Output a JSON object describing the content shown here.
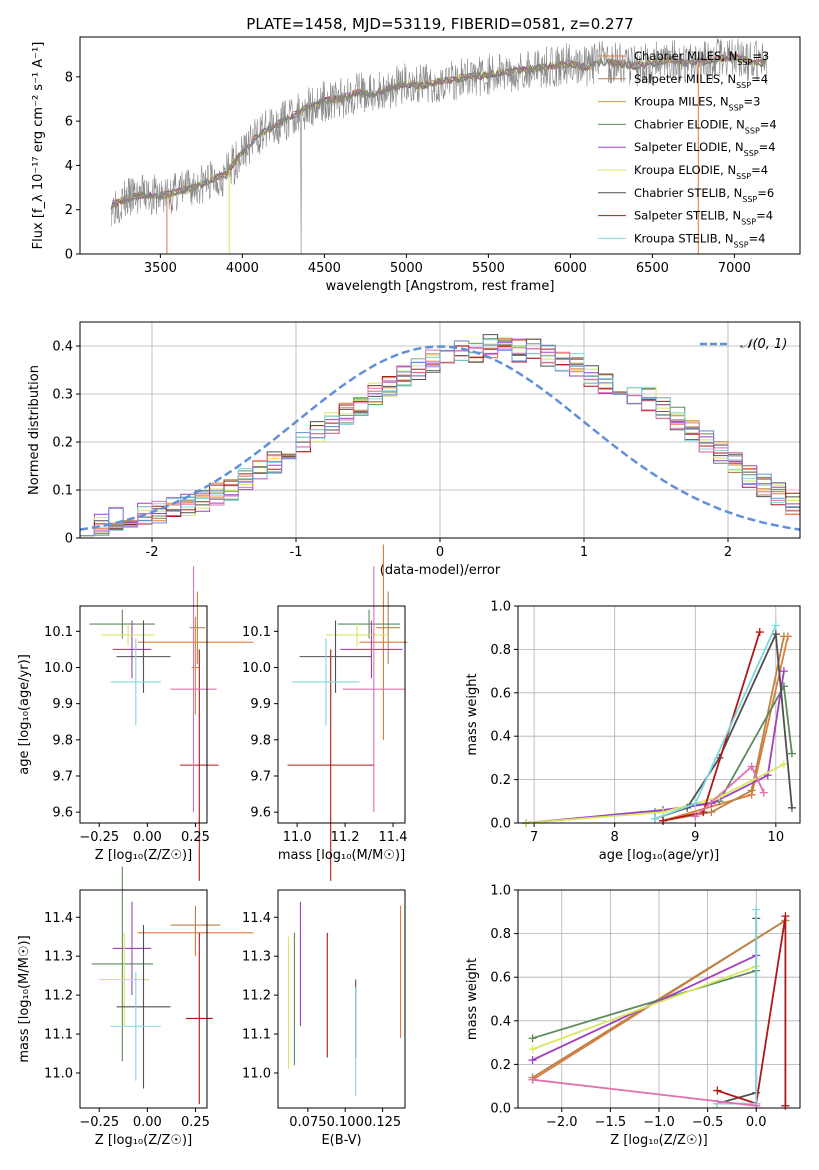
{
  "figure_title": "PLATE=1458, MJD=53119, FIBERID=0581, z=0.277",
  "colors": {
    "chabrier_miles": "#e07b39",
    "salpeter_miles": "#b8844a",
    "kroupa_miles": "#d6903a",
    "chabrier_elodie": "#5c8a5c",
    "salpeter_elodie": "#a040c0",
    "kroupa_elodie": "#d8e860",
    "chabrier_stelib": "#505050",
    "salpeter_stelib": "#b01818",
    "kroupa_stelib": "#80d8e0",
    "observed": "#888888",
    "normal": "#6090d8",
    "pink": "#e070b0",
    "blue": "#7090e0"
  },
  "chart_data": [
    {
      "id": "spectrum",
      "type": "line",
      "title": "PLATE=1458, MJD=53119, FIBERID=0581, z=0.277",
      "xlabel": "wavelength [Angstrom, rest frame]",
      "ylabel": "Flux [f_λ 10⁻¹⁷ erg cm⁻² s⁻¹ A⁻¹]",
      "xlim": [
        3010,
        7400
      ],
      "ylim": [
        0,
        9.8
      ],
      "xticks": [
        3500,
        4000,
        4500,
        5000,
        5500,
        6000,
        6500,
        7000
      ],
      "yticks": [
        0,
        2,
        4,
        6,
        8
      ],
      "continuum": {
        "x": [
          3200,
          3300,
          3400,
          3500,
          3600,
          3700,
          3800,
          3900,
          4000,
          4100,
          4200,
          4300,
          4400,
          4500,
          4600,
          4700,
          4800,
          4900,
          5000,
          5100,
          5200,
          5300,
          5400,
          5500,
          5600,
          5700,
          5800,
          5900,
          6000,
          6100,
          6200,
          6300,
          6400,
          6500,
          6600,
          6700,
          6800,
          6900,
          7000,
          7100,
          7200
        ],
        "y": [
          2.2,
          2.5,
          2.7,
          2.6,
          2.8,
          3.0,
          3.3,
          3.6,
          4.6,
          5.4,
          5.8,
          6.2,
          6.6,
          6.9,
          7.0,
          7.3,
          7.2,
          7.5,
          7.7,
          7.6,
          7.8,
          7.9,
          8.0,
          8.1,
          8.2,
          8.3,
          8.4,
          8.5,
          8.6,
          8.4,
          8.7,
          8.6,
          8.5,
          8.6,
          8.8,
          8.6,
          8.7,
          8.8,
          8.9,
          8.7,
          8.6
        ]
      },
      "legend": [
        {
          "label": "Chabrier MILES, N",
          "sub": "SSP",
          "suffix": "=3",
          "color_key": "chabrier_miles"
        },
        {
          "label": "Salpeter MILES, N",
          "sub": "SSP",
          "suffix": "=4",
          "color_key": "salpeter_miles"
        },
        {
          "label": "Kroupa MILES, N",
          "sub": "SSP",
          "suffix": "=3",
          "color_key": "kroupa_miles"
        },
        {
          "label": "Chabrier ELODIE, N",
          "sub": "SSP",
          "suffix": "=4",
          "color_key": "chabrier_elodie"
        },
        {
          "label": "Salpeter ELODIE, N",
          "sub": "SSP",
          "suffix": "=4",
          "color_key": "salpeter_elodie"
        },
        {
          "label": "Kroupa ELODIE, N",
          "sub": "SSP",
          "suffix": "=4",
          "color_key": "kroupa_elodie"
        },
        {
          "label": "Chabrier STELIB, N",
          "sub": "SSP",
          "suffix": "=6",
          "color_key": "chabrier_stelib"
        },
        {
          "label": "Salpeter STELIB, N",
          "sub": "SSP",
          "suffix": "=4",
          "color_key": "salpeter_stelib"
        },
        {
          "label": "Kroupa STELIB, N",
          "sub": "SSP",
          "suffix": "=4",
          "color_key": "kroupa_stelib"
        }
      ],
      "legend_position": "upper right"
    },
    {
      "id": "residuals",
      "type": "histogram",
      "xlabel": "(data-model)/error",
      "ylabel": "Normed distribution",
      "xlim": [
        -2.5,
        2.5
      ],
      "ylim": [
        0,
        0.45
      ],
      "xticks": [
        -2,
        -1,
        0,
        1,
        2
      ],
      "yticks": [
        0.0,
        0.1,
        0.2,
        0.3,
        0.4
      ],
      "grid": true,
      "bin_edges_start": -2.5,
      "bin_width": 0.1,
      "base_density": [
        0.03,
        0.03,
        0.04,
        0.045,
        0.05,
        0.055,
        0.06,
        0.07,
        0.08,
        0.09,
        0.1,
        0.12,
        0.14,
        0.16,
        0.18,
        0.2,
        0.22,
        0.24,
        0.26,
        0.28,
        0.3,
        0.32,
        0.34,
        0.35,
        0.37,
        0.38,
        0.39,
        0.39,
        0.4,
        0.4,
        0.39,
        0.39,
        0.38,
        0.37,
        0.36,
        0.34,
        0.32,
        0.31,
        0.3,
        0.29,
        0.27,
        0.25,
        0.22,
        0.2,
        0.18,
        0.16,
        0.13,
        0.11,
        0.09,
        0.07
      ],
      "normal_label": "𝒩(0, 1)",
      "legend_position": "upper right"
    },
    {
      "id": "age_vs_z",
      "type": "errorbar",
      "xlabel": "Z [log₁₀(Z/Z☉)]",
      "ylabel": "age  [log₁₀(age/yr)]",
      "xlim": [
        -0.35,
        0.31
      ],
      "ylim": [
        9.57,
        10.17
      ],
      "xticks": [
        -0.25,
        0.0,
        0.25
      ],
      "xtick_labels": [
        "−0.25",
        "0.00",
        "0.25"
      ],
      "yticks": [
        9.6,
        9.7,
        9.8,
        9.9,
        10.0,
        10.1
      ],
      "yticks_labels": [
        "9.6",
        "9.7",
        "9.8",
        "9.9",
        "10.0",
        "10.1"
      ],
      "points": [
        {
          "x": 0.25,
          "y": 10.07,
          "xerr": 0.3,
          "yerr": 0.07,
          "color_key": "chabrier_miles"
        },
        {
          "x": 0.26,
          "y": 10.11,
          "xerr": 0.04,
          "yerr": 0.1,
          "color_key": "salpeter_miles"
        },
        {
          "x": 0.25,
          "y": 10.0,
          "xerr": 0.02,
          "yerr": 0.13,
          "color_key": "kroupa_miles"
        },
        {
          "x": -0.13,
          "y": 10.12,
          "xerr": 0.17,
          "yerr": 0.04,
          "color_key": "chabrier_elodie"
        },
        {
          "x": -0.08,
          "y": 10.05,
          "xerr": 0.1,
          "yerr": 0.08,
          "color_key": "salpeter_elodie"
        },
        {
          "x": -0.1,
          "y": 10.09,
          "xerr": 0.14,
          "yerr": 0.03,
          "color_key": "kroupa_elodie"
        },
        {
          "x": -0.02,
          "y": 10.03,
          "xerr": 0.14,
          "yerr": 0.1,
          "color_key": "chabrier_stelib"
        },
        {
          "x": 0.27,
          "y": 9.73,
          "xerr": 0.1,
          "yerr": 0.32,
          "color_key": "salpeter_stelib"
        },
        {
          "x": -0.06,
          "y": 9.96,
          "xerr": 0.13,
          "yerr": 0.12,
          "color_key": "kroupa_stelib"
        },
        {
          "x": 0.24,
          "y": 9.94,
          "xerr": 0.12,
          "yerr": 0.34,
          "color_key": "pink"
        }
      ]
    },
    {
      "id": "age_vs_mass",
      "type": "errorbar",
      "xlabel": "mass [log₁₀(M/M☉)]",
      "ylabel": "",
      "xlim": [
        10.92,
        11.45
      ],
      "ylim": [
        9.57,
        10.17
      ],
      "xticks": [
        11.0,
        11.2,
        11.4
      ],
      "xtick_labels": [
        "11.0",
        "11.2",
        "11.4"
      ],
      "yticks": [
        9.6,
        9.7,
        9.8,
        9.9,
        10.0,
        10.1
      ],
      "yticks_labels": [
        "9.6",
        "9.7",
        "9.8",
        "9.9",
        "10.0",
        "10.1"
      ],
      "points": [
        {
          "x": 11.36,
          "y": 10.07,
          "xerr": 0.1,
          "yerr": 0.27,
          "color_key": "chabrier_miles"
        },
        {
          "x": 11.38,
          "y": 10.11,
          "xerr": 0.05,
          "yerr": 0.1,
          "color_key": "salpeter_miles"
        },
        {
          "x": 11.3,
          "y": 10.12,
          "xerr": 0.13,
          "yerr": 0.04,
          "color_key": "chabrier_elodie"
        },
        {
          "x": 11.31,
          "y": 10.05,
          "xerr": 0.13,
          "yerr": 0.08,
          "color_key": "salpeter_elodie"
        },
        {
          "x": 11.25,
          "y": 10.09,
          "xerr": 0.13,
          "yerr": 0.03,
          "color_key": "kroupa_elodie"
        },
        {
          "x": 11.16,
          "y": 10.03,
          "xerr": 0.15,
          "yerr": 0.1,
          "color_key": "chabrier_stelib"
        },
        {
          "x": 11.14,
          "y": 9.73,
          "xerr": 0.18,
          "yerr": 0.32,
          "color_key": "salpeter_stelib"
        },
        {
          "x": 11.12,
          "y": 9.96,
          "xerr": 0.14,
          "yerr": 0.12,
          "color_key": "kroupa_stelib"
        },
        {
          "x": 11.32,
          "y": 9.94,
          "xerr": 0.13,
          "yerr": 0.34,
          "color_key": "pink"
        }
      ]
    },
    {
      "id": "weight_vs_age",
      "type": "line",
      "xlabel": "age  [log₁₀(age/yr)]",
      "ylabel": "mass weight",
      "xlim": [
        6.8,
        10.3
      ],
      "ylim": [
        0,
        1
      ],
      "xticks": [
        7,
        8,
        9,
        10
      ],
      "xtick_labels": [
        "7",
        "8",
        "9",
        "10"
      ],
      "yticks": [
        0.0,
        0.2,
        0.4,
        0.6,
        0.8,
        1.0
      ],
      "yticks_labels": [
        "0.0",
        "0.2",
        "0.4",
        "0.6",
        "0.8",
        "1.0"
      ],
      "grid": true,
      "series": [
        {
          "color_key": "chabrier_miles",
          "x": [
            8.6,
            9.7,
            10.15
          ],
          "y": [
            0.01,
            0.13,
            0.86
          ]
        },
        {
          "color_key": "salpeter_miles",
          "x": [
            8.6,
            9.2,
            9.7,
            10.1
          ],
          "y": [
            0.01,
            0.05,
            0.15,
            0.86
          ]
        },
        {
          "color_key": "chabrier_elodie",
          "x": [
            6.9,
            8.5,
            9.3,
            10.1,
            10.2
          ],
          "y": [
            0.0,
            0.05,
            0.1,
            0.63,
            0.32
          ]
        },
        {
          "color_key": "salpeter_elodie",
          "x": [
            6.9,
            8.6,
            9.2,
            9.9,
            10.1
          ],
          "y": [
            0.0,
            0.06,
            0.09,
            0.22,
            0.7
          ]
        },
        {
          "color_key": "kroupa_elodie",
          "x": [
            6.9,
            8.6,
            9.3,
            10.1
          ],
          "y": [
            0.0,
            0.05,
            0.12,
            0.27
          ]
        },
        {
          "color_key": "chabrier_stelib",
          "x": [
            8.5,
            8.9,
            9.3,
            10.0,
            10.2
          ],
          "y": [
            0.02,
            0.07,
            0.3,
            0.87,
            0.07
          ]
        },
        {
          "color_key": "salpeter_stelib",
          "x": [
            8.6,
            9.1,
            9.8
          ],
          "y": [
            0.01,
            0.05,
            0.88
          ]
        },
        {
          "color_key": "kroupa_stelib",
          "x": [
            8.5,
            9.0,
            10.0
          ],
          "y": [
            0.02,
            0.09,
            0.91
          ]
        },
        {
          "color_key": "pink",
          "x": [
            9.0,
            9.7,
            9.85
          ],
          "y": [
            0.03,
            0.26,
            0.14
          ]
        }
      ]
    },
    {
      "id": "mass_vs_z",
      "type": "errorbar",
      "xlabel": "Z [log₁₀(Z/Z☉)]",
      "ylabel": "mass [log₁₀(M/M☉)]",
      "xlim": [
        -0.35,
        0.31
      ],
      "ylim": [
        10.91,
        11.47
      ],
      "xticks": [
        -0.25,
        0.0,
        0.25
      ],
      "xtick_labels": [
        "−0.25",
        "0.00",
        "0.25"
      ],
      "yticks": [
        11.0,
        11.1,
        11.2,
        11.3,
        11.4
      ],
      "yticks_labels": [
        "11.0",
        "11.1",
        "11.2",
        "11.3",
        "11.4"
      ],
      "points": [
        {
          "x": 0.25,
          "y": 11.36,
          "xerr": 0.3,
          "yerr": 0.06,
          "color_key": "chabrier_miles"
        },
        {
          "x": 0.25,
          "y": 11.38,
          "xerr": 0.13,
          "yerr": 0.05,
          "color_key": "salpeter_miles"
        },
        {
          "x": -0.13,
          "y": 11.28,
          "xerr": 0.16,
          "yerr": 0.25,
          "color_key": "chabrier_elodie"
        },
        {
          "x": -0.08,
          "y": 11.32,
          "xerr": 0.1,
          "yerr": 0.12,
          "color_key": "salpeter_elodie"
        },
        {
          "x": -0.12,
          "y": 11.24,
          "xerr": 0.13,
          "yerr": 0.12,
          "color_key": "kroupa_elodie"
        },
        {
          "x": -0.02,
          "y": 11.17,
          "xerr": 0.14,
          "yerr": 0.21,
          "color_key": "chabrier_stelib"
        },
        {
          "x": 0.27,
          "y": 11.14,
          "xerr": 0.07,
          "yerr": 0.22,
          "color_key": "salpeter_stelib"
        },
        {
          "x": -0.06,
          "y": 11.12,
          "xerr": 0.13,
          "yerr": 0.14,
          "color_key": "kroupa_stelib"
        }
      ]
    },
    {
      "id": "mass_vs_ebv",
      "type": "errorbar",
      "xlabel": "E(B-V)",
      "ylabel": "",
      "xlim": [
        0.055,
        0.14
      ],
      "ylim": [
        10.91,
        11.47
      ],
      "xticks": [
        0.075,
        0.1,
        0.125
      ],
      "xtick_labels": [
        "0.075",
        "0.100",
        "0.125"
      ],
      "yticks": [
        11.0,
        11.1,
        11.2,
        11.3,
        11.4
      ],
      "yticks_labels": [
        "11.0",
        "11.1",
        "11.2",
        "11.3",
        "11.4"
      ],
      "points": [
        {
          "x": 0.062,
          "y": 11.18,
          "yerr": 0.17,
          "color_key": "kroupa_elodie"
        },
        {
          "x": 0.066,
          "y": 11.19,
          "yerr": 0.17,
          "color_key": "chabrier_elodie"
        },
        {
          "x": 0.07,
          "y": 11.28,
          "yerr": 0.16,
          "color_key": "salpeter_elodie"
        },
        {
          "x": 0.088,
          "y": 11.2,
          "yerr": 0.16,
          "color_key": "salpeter_stelib"
        },
        {
          "x": 0.107,
          "y": 11.14,
          "yerr": 0.1,
          "color_key": "chabrier_stelib"
        },
        {
          "x": 0.107,
          "y": 11.08,
          "yerr": 0.14,
          "color_key": "kroupa_stelib"
        },
        {
          "x": 0.137,
          "y": 11.26,
          "yerr": 0.17,
          "color_key": "chabrier_miles"
        }
      ]
    },
    {
      "id": "weight_vs_z",
      "type": "line",
      "xlabel": "Z [log₁₀(Z/Z☉)]",
      "ylabel": "mass weight",
      "xlim": [
        -2.45,
        0.45
      ],
      "ylim": [
        0,
        1
      ],
      "xticks": [
        -2.0,
        -1.5,
        -1.0,
        -0.5,
        0.0
      ],
      "xtick_labels": [
        "−2.0",
        "−1.5",
        "−1.0",
        "−0.5",
        "0.0"
      ],
      "yticks": [
        0.0,
        0.2,
        0.4,
        0.6,
        0.8,
        1.0
      ],
      "yticks_labels": [
        "0.0",
        "0.2",
        "0.4",
        "0.6",
        "0.8",
        "1.0"
      ],
      "grid": true,
      "series": [
        {
          "color_key": "chabrier_miles",
          "x": [
            -2.3,
            0.3
          ],
          "y": [
            0.13,
            0.86
          ]
        },
        {
          "color_key": "salpeter_miles",
          "x": [
            -2.3,
            0.3
          ],
          "y": [
            0.14,
            0.86
          ]
        },
        {
          "color_key": "chabrier_elodie",
          "x": [
            -2.3,
            0.0
          ],
          "y": [
            0.32,
            0.63
          ]
        },
        {
          "color_key": "salpeter_elodie",
          "x": [
            -2.3,
            0.0
          ],
          "y": [
            0.22,
            0.7
          ]
        },
        {
          "color_key": "kroupa_elodie",
          "x": [
            -2.3,
            0.0
          ],
          "y": [
            0.27,
            0.65
          ]
        },
        {
          "color_key": "chabrier_stelib",
          "x": [
            -0.4,
            0.0,
            0.0
          ],
          "y": [
            0.02,
            0.07,
            0.87
          ]
        },
        {
          "color_key": "salpeter_stelib",
          "x": [
            -0.4,
            0.0,
            0.3,
            0.3
          ],
          "y": [
            0.08,
            0.02,
            0.88,
            0.01
          ]
        },
        {
          "color_key": "kroupa_stelib",
          "x": [
            -0.4,
            0.0,
            0.0
          ],
          "y": [
            0.02,
            0.02,
            0.91
          ]
        },
        {
          "color_key": "pink",
          "x": [
            -2.3,
            0.0
          ],
          "y": [
            0.13,
            0.01
          ]
        }
      ]
    }
  ]
}
